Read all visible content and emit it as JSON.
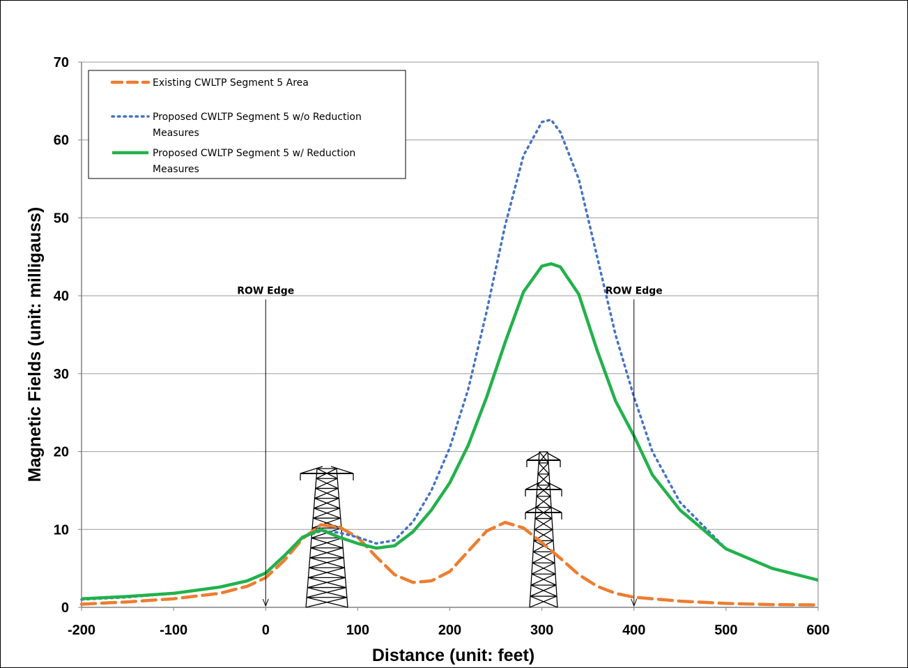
{
  "chart_data": {
    "type": "line",
    "title": "",
    "xlabel": "Distance (unit: feet)",
    "ylabel": "Magnetic Fields (unit: milligauss)",
    "xlim": [
      -200,
      600
    ],
    "ylim": [
      0,
      70
    ],
    "xticks": [
      -200,
      -100,
      0,
      100,
      200,
      300,
      400,
      500,
      600
    ],
    "yticks": [
      0,
      10,
      20,
      30,
      40,
      50,
      60,
      70
    ],
    "grid": "horizontal",
    "legend_position": "top-left",
    "series": [
      {
        "name": "Existing CWLTP Segment 5 Area",
        "color": "#ED7D31",
        "style": "dashed",
        "x": [
          -200,
          -150,
          -100,
          -50,
          -20,
          0,
          20,
          40,
          60,
          80,
          100,
          120,
          140,
          160,
          180,
          200,
          220,
          240,
          260,
          280,
          300,
          320,
          340,
          360,
          380,
          400,
          450,
          500,
          550,
          600
        ],
        "y": [
          0.4,
          0.7,
          1.1,
          1.8,
          2.7,
          3.8,
          6.0,
          8.8,
          10.6,
          10.3,
          9.0,
          6.5,
          4.2,
          3.2,
          3.4,
          4.6,
          7.2,
          9.8,
          10.9,
          10.2,
          8.3,
          6.3,
          4.2,
          2.7,
          1.8,
          1.3,
          0.8,
          0.5,
          0.35,
          0.3
        ]
      },
      {
        "name": "Proposed CWLTP Segment 5 w/o Reduction Measures",
        "color": "#4472C4",
        "style": "dotted",
        "x": [
          -200,
          -150,
          -100,
          -50,
          -20,
          0,
          20,
          40,
          60,
          80,
          100,
          120,
          140,
          160,
          180,
          200,
          220,
          240,
          260,
          280,
          300,
          310,
          320,
          340,
          360,
          380,
          400,
          420,
          450,
          500,
          550,
          600
        ],
        "y": [
          1.0,
          1.3,
          1.8,
          2.6,
          3.4,
          4.4,
          6.6,
          9.0,
          9.8,
          9.6,
          9.0,
          8.2,
          8.6,
          11.0,
          15.0,
          20.5,
          28.0,
          38.0,
          49.0,
          58.0,
          62.3,
          62.6,
          61.0,
          55.0,
          45.0,
          35.0,
          27.0,
          20.0,
          13.5,
          7.5,
          5.0,
          3.5
        ]
      },
      {
        "name": "Proposed CWLTP Segment 5 w/ Reduction Measures",
        "color": "#22B14C",
        "style": "solid",
        "x": [
          -200,
          -150,
          -100,
          -50,
          -20,
          0,
          20,
          40,
          60,
          80,
          100,
          120,
          140,
          160,
          180,
          200,
          220,
          240,
          260,
          280,
          300,
          310,
          320,
          340,
          360,
          380,
          400,
          420,
          450,
          500,
          550,
          600
        ],
        "y": [
          1.1,
          1.4,
          1.8,
          2.6,
          3.4,
          4.4,
          6.6,
          9.0,
          10.0,
          9.0,
          8.2,
          7.6,
          7.9,
          9.7,
          12.5,
          16.0,
          20.8,
          27.0,
          34.0,
          40.5,
          43.8,
          44.1,
          43.7,
          40.2,
          33.0,
          26.5,
          22.0,
          17.0,
          12.5,
          7.5,
          5.0,
          3.5
        ]
      }
    ],
    "annotations": [
      {
        "text": "ROW Edge",
        "x": 0,
        "y": 39
      },
      {
        "text": "ROW Edge",
        "x": 400,
        "y": 39
      }
    ]
  }
}
